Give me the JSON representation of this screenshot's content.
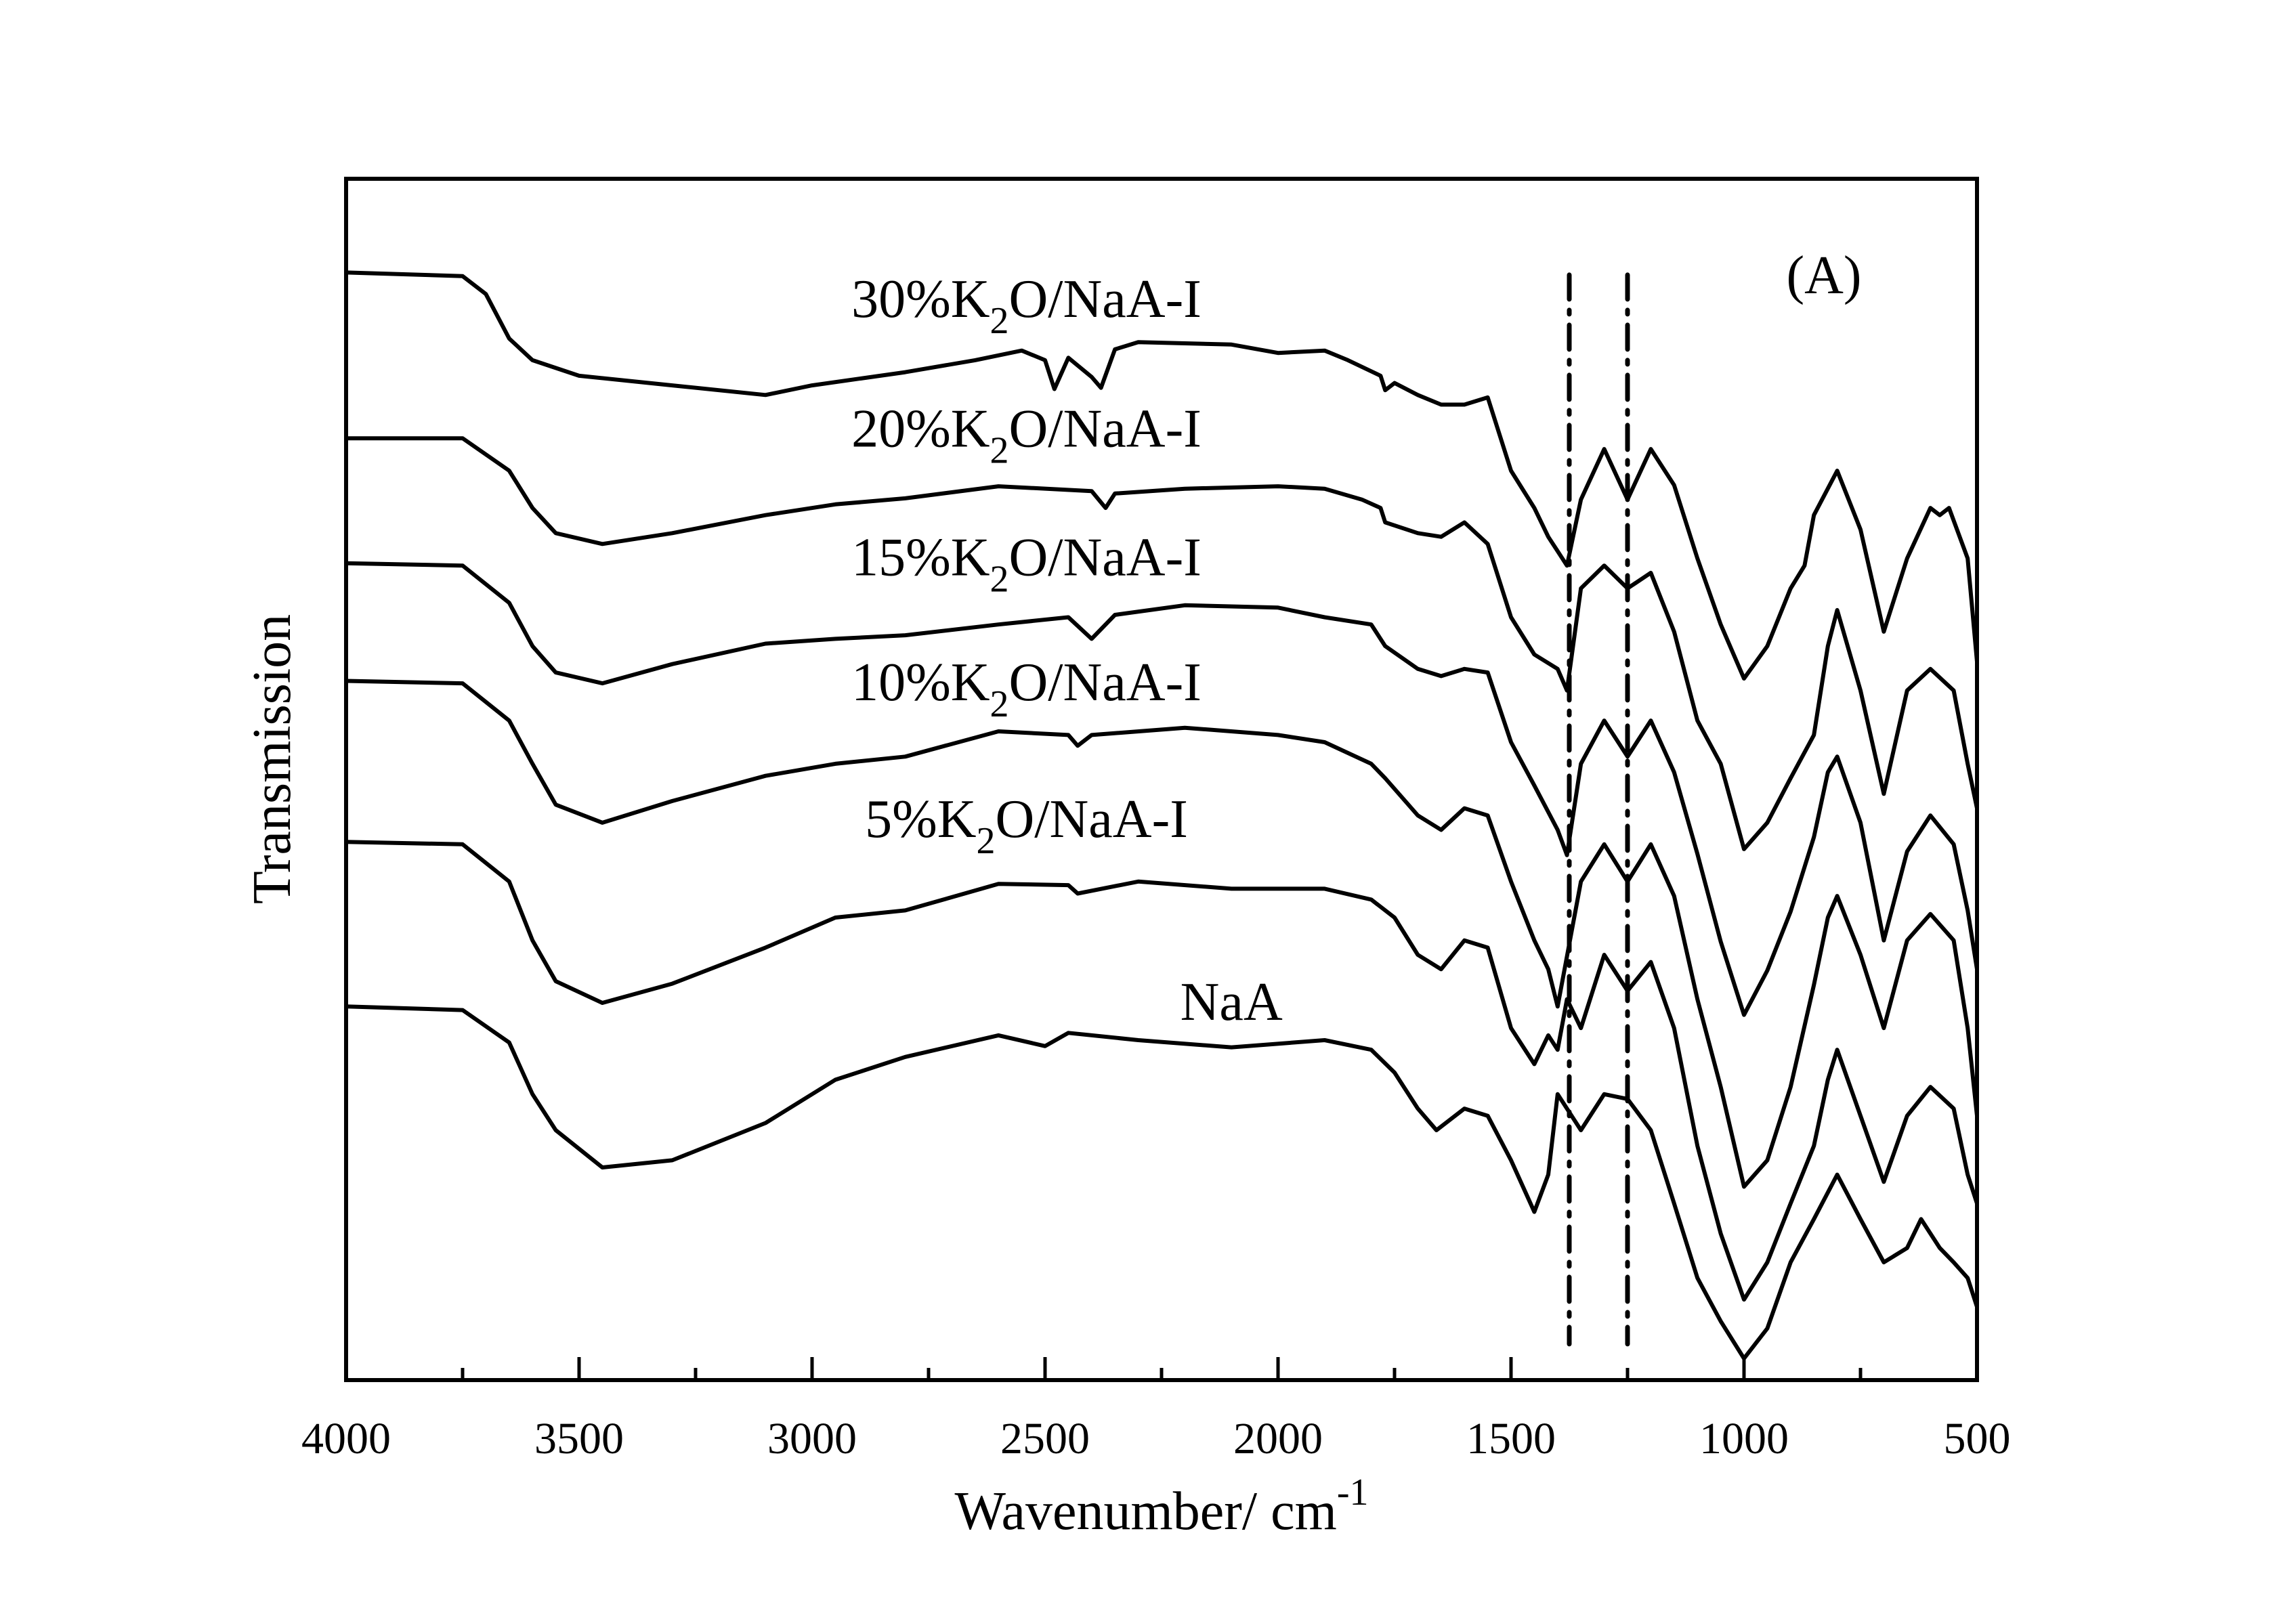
{
  "chart_data": {
    "type": "line",
    "title": "",
    "panel_label": "(A)",
    "xlabel": "Wavenumber/ cm",
    "xlabel_superscript": "-1",
    "ylabel": "Transmission",
    "xlim": [
      4000,
      500
    ],
    "x_reversed": true,
    "ylim": [
      0,
      100
    ],
    "y_ticks_shown": false,
    "grid": false,
    "legend": "inline-labels",
    "x_ticks": [
      4000,
      3500,
      3000,
      2500,
      2000,
      1500,
      1000,
      500
    ],
    "x_tick_labels": [
      "4000",
      "3500",
      "3000",
      "2500",
      "2000",
      "1500",
      "1000",
      "500"
    ],
    "x_minor_ticks": [
      3750,
      3250,
      2750,
      2250,
      1750,
      1250,
      750
    ],
    "reference_lines": [
      {
        "x": 1375,
        "style": "dash-dot",
        "y_range": [
          3,
          92
        ]
      },
      {
        "x": 1250,
        "style": "dash-dot",
        "y_range": [
          3,
          92
        ]
      }
    ],
    "series": [
      {
        "name": "30%K2O/NaA-I",
        "label_parts": [
          "30%K",
          "2",
          "O/NaA-I"
        ],
        "label_at": [
          2540,
          88.5
        ],
        "points": [
          [
            4000,
            92.2
          ],
          [
            3750,
            91.9
          ],
          [
            3700,
            90.4
          ],
          [
            3650,
            86.7
          ],
          [
            3600,
            84.9
          ],
          [
            3500,
            83.6
          ],
          [
            3300,
            82.8
          ],
          [
            3100,
            82.0
          ],
          [
            3000,
            82.8
          ],
          [
            2800,
            83.9
          ],
          [
            2650,
            84.9
          ],
          [
            2550,
            85.7
          ],
          [
            2500,
            84.9
          ],
          [
            2480,
            82.5
          ],
          [
            2450,
            85.1
          ],
          [
            2400,
            83.5
          ],
          [
            2380,
            82.6
          ],
          [
            2350,
            85.8
          ],
          [
            2300,
            86.4
          ],
          [
            2100,
            86.2
          ],
          [
            2000,
            85.5
          ],
          [
            1900,
            85.7
          ],
          [
            1850,
            84.9
          ],
          [
            1780,
            83.6
          ],
          [
            1770,
            82.4
          ],
          [
            1750,
            83.0
          ],
          [
            1700,
            82.0
          ],
          [
            1650,
            81.2
          ],
          [
            1600,
            81.2
          ],
          [
            1550,
            81.8
          ],
          [
            1500,
            75.7
          ],
          [
            1450,
            72.6
          ],
          [
            1420,
            70.2
          ],
          [
            1400,
            69.0
          ],
          [
            1380,
            67.8
          ],
          [
            1350,
            73.3
          ],
          [
            1300,
            77.5
          ],
          [
            1250,
            73.3
          ],
          [
            1200,
            77.5
          ],
          [
            1150,
            74.5
          ],
          [
            1100,
            68.4
          ],
          [
            1050,
            62.9
          ],
          [
            1000,
            58.4
          ],
          [
            950,
            61.1
          ],
          [
            900,
            65.9
          ],
          [
            870,
            67.8
          ],
          [
            850,
            72.0
          ],
          [
            800,
            75.7
          ],
          [
            750,
            70.8
          ],
          [
            700,
            62.3
          ],
          [
            650,
            68.4
          ],
          [
            600,
            72.6
          ],
          [
            580,
            72.0
          ],
          [
            560,
            72.6
          ],
          [
            520,
            68.4
          ],
          [
            500,
            59.8
          ]
        ]
      },
      {
        "name": "20%K2O/NaA-I",
        "label_parts": [
          "20%K",
          "2",
          "O/NaA-I"
        ],
        "label_at": [
          2540,
          77.7
        ],
        "points": [
          [
            4000,
            78.4
          ],
          [
            3750,
            78.4
          ],
          [
            3650,
            75.7
          ],
          [
            3600,
            72.6
          ],
          [
            3550,
            70.5
          ],
          [
            3450,
            69.6
          ],
          [
            3300,
            70.5
          ],
          [
            3100,
            72.0
          ],
          [
            2950,
            72.9
          ],
          [
            2800,
            73.4
          ],
          [
            2600,
            74.4
          ],
          [
            2400,
            74.0
          ],
          [
            2370,
            72.6
          ],
          [
            2350,
            73.8
          ],
          [
            2200,
            74.2
          ],
          [
            2000,
            74.4
          ],
          [
            1900,
            74.2
          ],
          [
            1820,
            73.3
          ],
          [
            1780,
            72.6
          ],
          [
            1770,
            71.4
          ],
          [
            1700,
            70.5
          ],
          [
            1650,
            70.2
          ],
          [
            1600,
            71.4
          ],
          [
            1550,
            69.6
          ],
          [
            1500,
            63.5
          ],
          [
            1450,
            60.4
          ],
          [
            1400,
            59.2
          ],
          [
            1380,
            57.4
          ],
          [
            1350,
            65.9
          ],
          [
            1300,
            67.8
          ],
          [
            1250,
            65.9
          ],
          [
            1200,
            67.2
          ],
          [
            1150,
            62.3
          ],
          [
            1100,
            54.9
          ],
          [
            1050,
            51.3
          ],
          [
            1000,
            44.2
          ],
          [
            950,
            46.4
          ],
          [
            900,
            50.1
          ],
          [
            850,
            53.7
          ],
          [
            820,
            61.1
          ],
          [
            800,
            64.1
          ],
          [
            750,
            57.4
          ],
          [
            700,
            48.8
          ],
          [
            650,
            57.4
          ],
          [
            600,
            59.2
          ],
          [
            550,
            57.4
          ],
          [
            520,
            51.3
          ],
          [
            500,
            47.6
          ]
        ]
      },
      {
        "name": "15%K2O/NaA-I",
        "label_parts": [
          "15%K",
          "2",
          "O/NaA-I"
        ],
        "label_at": [
          2540,
          67.0
        ],
        "points": [
          [
            4000,
            68.0
          ],
          [
            3750,
            67.8
          ],
          [
            3650,
            64.7
          ],
          [
            3600,
            61.1
          ],
          [
            3550,
            58.9
          ],
          [
            3450,
            58.0
          ],
          [
            3300,
            59.6
          ],
          [
            3100,
            61.3
          ],
          [
            2950,
            61.7
          ],
          [
            2800,
            62.0
          ],
          [
            2600,
            62.9
          ],
          [
            2450,
            63.5
          ],
          [
            2400,
            61.7
          ],
          [
            2350,
            63.7
          ],
          [
            2200,
            64.5
          ],
          [
            2000,
            64.3
          ],
          [
            1900,
            63.5
          ],
          [
            1800,
            62.9
          ],
          [
            1770,
            61.1
          ],
          [
            1700,
            59.2
          ],
          [
            1650,
            58.6
          ],
          [
            1600,
            59.2
          ],
          [
            1550,
            58.9
          ],
          [
            1500,
            53.1
          ],
          [
            1450,
            49.5
          ],
          [
            1400,
            45.8
          ],
          [
            1380,
            43.7
          ],
          [
            1350,
            51.3
          ],
          [
            1300,
            54.9
          ],
          [
            1250,
            51.9
          ],
          [
            1200,
            54.9
          ],
          [
            1150,
            50.6
          ],
          [
            1100,
            43.8
          ],
          [
            1050,
            36.5
          ],
          [
            1000,
            30.4
          ],
          [
            950,
            34.1
          ],
          [
            900,
            39.0
          ],
          [
            850,
            45.2
          ],
          [
            820,
            50.6
          ],
          [
            800,
            51.9
          ],
          [
            750,
            46.4
          ],
          [
            700,
            36.6
          ],
          [
            650,
            44.0
          ],
          [
            600,
            47.0
          ],
          [
            550,
            44.6
          ],
          [
            520,
            39.1
          ],
          [
            500,
            34.2
          ]
        ]
      },
      {
        "name": "10%K2O/NaA-I",
        "label_parts": [
          "10%K",
          "2",
          "O/NaA-I"
        ],
        "label_at": [
          2540,
          56.6
        ],
        "points": [
          [
            4000,
            58.2
          ],
          [
            3750,
            58.0
          ],
          [
            3650,
            54.9
          ],
          [
            3600,
            51.3
          ],
          [
            3550,
            47.9
          ],
          [
            3450,
            46.4
          ],
          [
            3300,
            48.2
          ],
          [
            3100,
            50.3
          ],
          [
            2950,
            51.3
          ],
          [
            2800,
            51.9
          ],
          [
            2600,
            54.0
          ],
          [
            2450,
            53.7
          ],
          [
            2430,
            52.8
          ],
          [
            2400,
            53.7
          ],
          [
            2200,
            54.3
          ],
          [
            2000,
            53.7
          ],
          [
            1900,
            53.1
          ],
          [
            1800,
            51.3
          ],
          [
            1770,
            50.1
          ],
          [
            1700,
            47.0
          ],
          [
            1650,
            45.8
          ],
          [
            1600,
            47.6
          ],
          [
            1550,
            47.0
          ],
          [
            1500,
            41.5
          ],
          [
            1450,
            36.6
          ],
          [
            1420,
            34.2
          ],
          [
            1400,
            31.1
          ],
          [
            1350,
            41.5
          ],
          [
            1300,
            44.6
          ],
          [
            1250,
            41.5
          ],
          [
            1200,
            44.6
          ],
          [
            1150,
            40.3
          ],
          [
            1100,
            31.7
          ],
          [
            1050,
            24.4
          ],
          [
            1000,
            16.1
          ],
          [
            950,
            18.3
          ],
          [
            900,
            24.4
          ],
          [
            850,
            32.9
          ],
          [
            820,
            38.5
          ],
          [
            800,
            40.3
          ],
          [
            750,
            35.4
          ],
          [
            700,
            29.3
          ],
          [
            650,
            36.6
          ],
          [
            600,
            38.8
          ],
          [
            550,
            36.6
          ],
          [
            520,
            29.3
          ],
          [
            500,
            22.0
          ]
        ]
      },
      {
        "name": "5%K2O/NaA-I",
        "label_parts": [
          "5%K",
          "2",
          "O/NaA-I"
        ],
        "label_at": [
          2540,
          45.2
        ],
        "points": [
          [
            4000,
            44.8
          ],
          [
            3750,
            44.6
          ],
          [
            3650,
            41.5
          ],
          [
            3600,
            36.6
          ],
          [
            3550,
            33.2
          ],
          [
            3450,
            31.4
          ],
          [
            3300,
            33.0
          ],
          [
            3100,
            36.0
          ],
          [
            2950,
            38.5
          ],
          [
            2800,
            39.1
          ],
          [
            2600,
            41.3
          ],
          [
            2450,
            41.2
          ],
          [
            2430,
            40.5
          ],
          [
            2300,
            41.5
          ],
          [
            2100,
            40.9
          ],
          [
            1900,
            40.9
          ],
          [
            1800,
            40.0
          ],
          [
            1750,
            38.5
          ],
          [
            1700,
            35.4
          ],
          [
            1650,
            34.2
          ],
          [
            1600,
            36.6
          ],
          [
            1550,
            36.0
          ],
          [
            1500,
            29.3
          ],
          [
            1450,
            26.3
          ],
          [
            1420,
            28.7
          ],
          [
            1400,
            27.5
          ],
          [
            1380,
            31.7
          ],
          [
            1350,
            29.3
          ],
          [
            1300,
            35.4
          ],
          [
            1250,
            32.4
          ],
          [
            1200,
            34.8
          ],
          [
            1150,
            29.3
          ],
          [
            1100,
            19.5
          ],
          [
            1050,
            12.2
          ],
          [
            1000,
            6.7
          ],
          [
            950,
            9.8
          ],
          [
            900,
            14.7
          ],
          [
            850,
            19.5
          ],
          [
            820,
            25.0
          ],
          [
            800,
            27.5
          ],
          [
            750,
            22.0
          ],
          [
            700,
            16.5
          ],
          [
            650,
            22.0
          ],
          [
            600,
            24.4
          ],
          [
            550,
            22.6
          ],
          [
            520,
            17.1
          ],
          [
            500,
            14.7
          ]
        ]
      },
      {
        "name": "NaA",
        "label_parts": [
          "NaA",
          "",
          ""
        ],
        "label_at": [
          2100,
          30.0
        ],
        "points": [
          [
            4000,
            31.1
          ],
          [
            3750,
            30.8
          ],
          [
            3650,
            28.1
          ],
          [
            3600,
            23.8
          ],
          [
            3550,
            20.8
          ],
          [
            3450,
            17.7
          ],
          [
            3300,
            18.3
          ],
          [
            3100,
            21.4
          ],
          [
            2950,
            25.0
          ],
          [
            2800,
            26.9
          ],
          [
            2600,
            28.7
          ],
          [
            2500,
            27.8
          ],
          [
            2450,
            28.9
          ],
          [
            2300,
            28.3
          ],
          [
            2100,
            27.7
          ],
          [
            1900,
            28.3
          ],
          [
            1800,
            27.5
          ],
          [
            1750,
            25.6
          ],
          [
            1700,
            22.6
          ],
          [
            1660,
            20.8
          ],
          [
            1600,
            22.6
          ],
          [
            1550,
            22.0
          ],
          [
            1500,
            18.3
          ],
          [
            1450,
            14.0
          ],
          [
            1420,
            17.1
          ],
          [
            1400,
            23.8
          ],
          [
            1380,
            22.6
          ],
          [
            1350,
            20.8
          ],
          [
            1300,
            23.8
          ],
          [
            1250,
            23.4
          ],
          [
            1200,
            20.8
          ],
          [
            1150,
            14.7
          ],
          [
            1100,
            8.5
          ],
          [
            1050,
            4.9
          ],
          [
            1000,
            1.8
          ],
          [
            950,
            4.3
          ],
          [
            900,
            9.8
          ],
          [
            850,
            13.4
          ],
          [
            800,
            17.1
          ],
          [
            750,
            13.4
          ],
          [
            700,
            9.8
          ],
          [
            650,
            11.0
          ],
          [
            620,
            13.4
          ],
          [
            580,
            11.0
          ],
          [
            550,
            9.8
          ],
          [
            520,
            8.5
          ],
          [
            500,
            6.1
          ]
        ]
      }
    ]
  }
}
